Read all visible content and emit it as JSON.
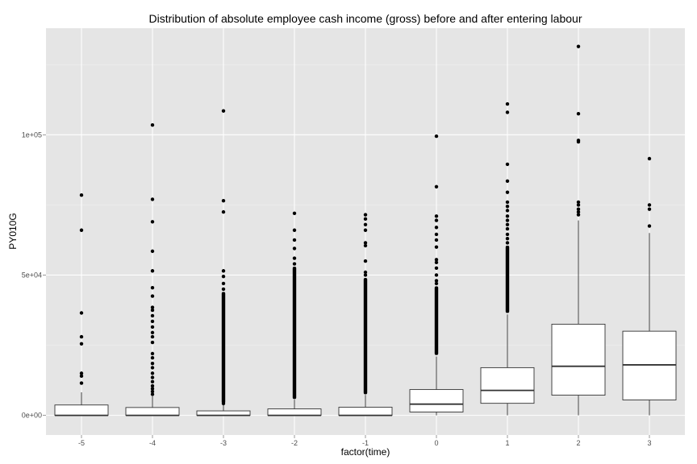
{
  "chart_data": {
    "type": "box",
    "title": "Distribution of absolute employee cash income (gross) before and after entering labour",
    "xlabel": "factor(time)",
    "ylabel": "PY010G",
    "ylim": [
      -7000,
      138000
    ],
    "y_ticks": [
      {
        "value": 0,
        "label": "0e+00"
      },
      {
        "value": 50000,
        "label": "5e+04"
      },
      {
        "value": 100000,
        "label": "1e+05"
      }
    ],
    "categories": [
      "-5",
      "-4",
      "-3",
      "-2",
      "-1",
      "0",
      "1",
      "2",
      "3"
    ],
    "grid": true,
    "background": "#e5e5e5",
    "boxes": [
      {
        "x": "-5",
        "lower_whisker": 0,
        "q1": 0,
        "median": 0,
        "q3": 3700,
        "upper_whisker": 8200,
        "outliers": [
          11500,
          14000,
          15000,
          25500,
          28000,
          36500,
          66000,
          78500
        ]
      },
      {
        "x": "-4",
        "lower_whisker": 0,
        "q1": 0,
        "median": 0,
        "q3": 2800,
        "upper_whisker": 6800,
        "outliers": [
          7500,
          8500,
          9500,
          10500,
          12000,
          13500,
          15000,
          17000,
          18500,
          20500,
          22000,
          26000,
          28000,
          29500,
          31500,
          33500,
          35500,
          37500,
          38500,
          42500,
          45500,
          51500,
          58500,
          69000,
          77000,
          103500
        ]
      },
      {
        "x": "-3",
        "lower_whisker": 0,
        "q1": 0,
        "median": 0,
        "q3": 1600,
        "upper_whisker": 3900,
        "outliers": [
          4200,
          45000,
          47000,
          49500,
          51500,
          72500,
          76500,
          108500
        ],
        "outlier_band": [
          4200,
          44000
        ]
      },
      {
        "x": "-2",
        "lower_whisker": 0,
        "q1": 0,
        "median": 0,
        "q3": 2300,
        "upper_whisker": 5600,
        "outliers": [
          54000,
          56000,
          59500,
          62500,
          66000,
          72000
        ],
        "outlier_band": [
          5800,
          53000
        ]
      },
      {
        "x": "-1",
        "lower_whisker": 0,
        "q1": 0,
        "median": 0,
        "q3": 2900,
        "upper_whisker": 7300,
        "outliers": [
          50000,
          51000,
          55000,
          60500,
          61500,
          66000,
          68000,
          70000,
          71500
        ],
        "outlier_band": [
          7500,
          49000
        ]
      },
      {
        "x": "0",
        "lower_whisker": 0,
        "q1": 1200,
        "median": 4000,
        "q3": 9200,
        "upper_whisker": 21000,
        "outliers": [
          47000,
          48000,
          50000,
          52500,
          54500,
          55500,
          60000,
          62500,
          64500,
          67000,
          69500,
          71000,
          81500,
          99500
        ],
        "outlier_band": [
          21500,
          46000
        ]
      },
      {
        "x": "1",
        "lower_whisker": 0,
        "q1": 4300,
        "median": 8900,
        "q3": 17000,
        "upper_whisker": 36000,
        "outliers": [
          61500,
          63000,
          64500,
          66500,
          68000,
          69500,
          71000,
          73000,
          74500,
          76000,
          79500,
          83500,
          89500,
          108000,
          111000
        ],
        "outlier_band": [
          36500,
          60500
        ]
      },
      {
        "x": "2",
        "lower_whisker": 0,
        "q1": 7200,
        "median": 17500,
        "q3": 32500,
        "upper_whisker": 69500,
        "outliers": [
          71500,
          72500,
          73500,
          75000,
          76000,
          97500,
          98000,
          107500,
          131500
        ]
      },
      {
        "x": "3",
        "lower_whisker": 0,
        "q1": 5500,
        "median": 18000,
        "q3": 30000,
        "upper_whisker": 65000,
        "outliers": [
          67500,
          73500,
          75000,
          91500
        ]
      }
    ]
  }
}
